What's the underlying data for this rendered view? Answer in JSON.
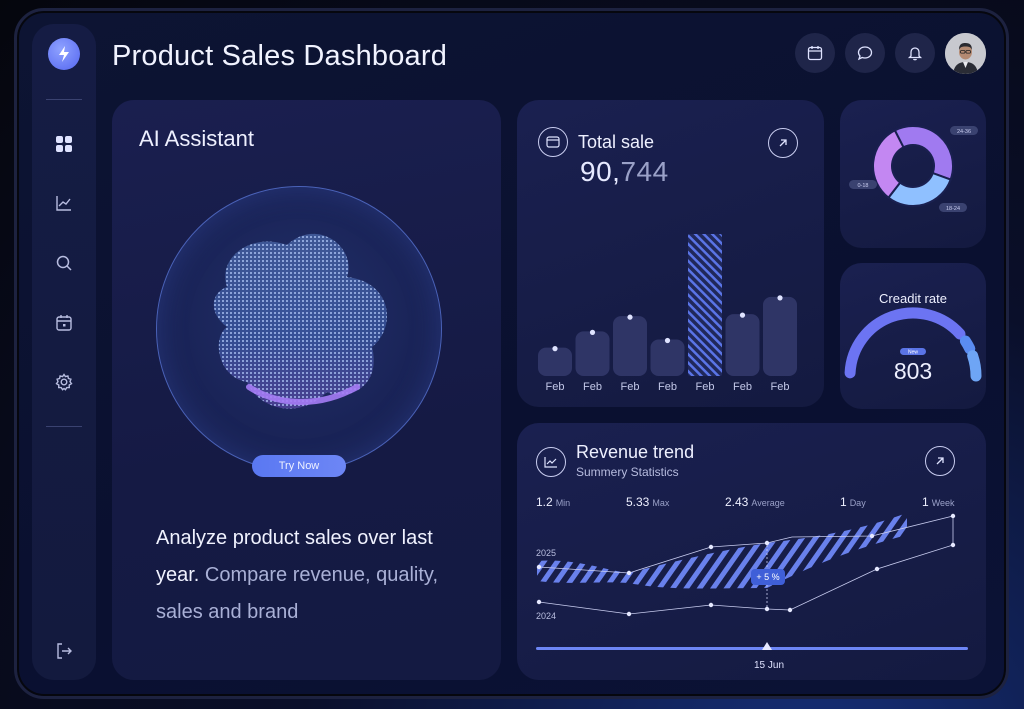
{
  "header": {
    "title": "Product Sales Dashboard"
  },
  "sidebar": {
    "items": [
      {
        "name": "dashboard",
        "icon": "grid-icon"
      },
      {
        "name": "analytics",
        "icon": "chart-line-icon"
      },
      {
        "name": "search",
        "icon": "search-icon"
      },
      {
        "name": "calendar",
        "icon": "calendar-icon"
      },
      {
        "name": "settings",
        "icon": "gear-icon"
      }
    ],
    "logout_icon": "logout-icon",
    "logo_icon": "lightning-icon"
  },
  "topbar": {
    "icons": [
      "calendar-icon",
      "chat-icon",
      "bell-icon"
    ],
    "avatar": "user-avatar"
  },
  "ai_assistant": {
    "title": "AI Assistant",
    "button": "Try Now",
    "text_main": "Analyze product sales over last year.",
    "text_dim": " Compare revenue, quality, sales and brand"
  },
  "total_sale": {
    "title": "Total sale",
    "value_bright": "90,",
    "value_dim": "744",
    "chart_data": {
      "type": "bar",
      "categories": [
        "Feb",
        "Feb",
        "Feb",
        "Feb",
        "Feb",
        "Feb",
        "Feb"
      ],
      "values": [
        28,
        44,
        59,
        36,
        140,
        61,
        78
      ],
      "highlight_index": 4
    }
  },
  "distribution": {
    "labels": [
      "24-36",
      "0-18",
      "18-24"
    ],
    "chart_data": {
      "type": "pie",
      "series": [
        {
          "label": "24-36",
          "value": 38,
          "color": "#a07af0"
        },
        {
          "label": "18-24",
          "value": 30,
          "color": "#8fc0ff"
        },
        {
          "label": "0-18",
          "value": 32,
          "color": "#c387f2"
        }
      ]
    }
  },
  "credit": {
    "title": "Creadit rate",
    "value": "803",
    "badge": "New",
    "gauge_fraction": 0.8
  },
  "revenue": {
    "title": "Revenue trend",
    "subtitle": "Summery Statistics",
    "stats": [
      {
        "value": "1.2",
        "key": "Min"
      },
      {
        "value": "5.33",
        "key": "Max"
      },
      {
        "value": "2.43",
        "key": "Average"
      },
      {
        "value": "1",
        "key": "Day"
      },
      {
        "value": "1",
        "key": "Week"
      }
    ],
    "year_top": "2025",
    "year_bottom": "2024",
    "badge": "+ 5 %",
    "date": "15 Jun"
  }
}
